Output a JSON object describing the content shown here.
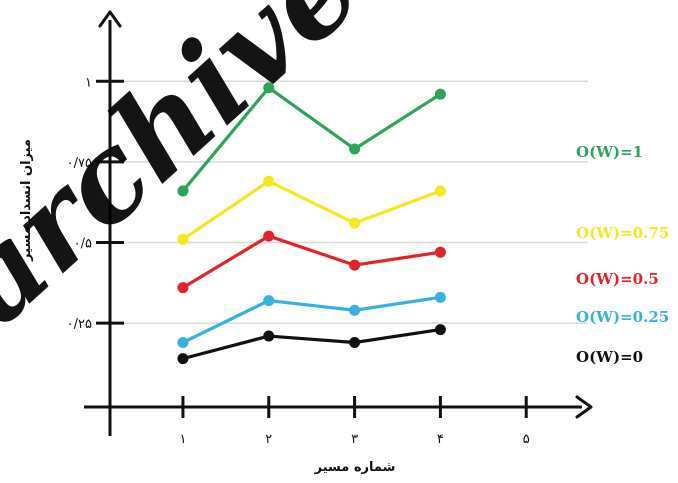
{
  "chart_data": {
    "type": "line",
    "xlabel": "شماره مسیر",
    "ylabel": "میزان انسداد مسیر",
    "x": [
      1,
      2,
      3,
      4
    ],
    "x_ticks": [
      "۱",
      "۲",
      "۳",
      "۴",
      "۵"
    ],
    "y_ticks": [
      "۰/۲۵",
      "۰/۵",
      "۰/۷۵",
      "۱"
    ],
    "xlim": [
      0.15,
      5.65
    ],
    "ylim": [
      -0.01,
      1.19
    ],
    "grid": true,
    "series": [
      {
        "name": "O(W)=1",
        "color": "#2aa655",
        "values": [
          0.66,
          0.98,
          0.79,
          0.96
        ]
      },
      {
        "name": "O(W)=0.75",
        "color": "#f7e71c",
        "values": [
          0.51,
          0.69,
          0.56,
          0.66
        ]
      },
      {
        "name": "O(W)=0.5",
        "color": "#e82127",
        "values": [
          0.36,
          0.52,
          0.43,
          0.47
        ]
      },
      {
        "name": "O(W)=0.25",
        "color": "#34b3e3",
        "values": [
          0.19,
          0.32,
          0.29,
          0.33
        ]
      },
      {
        "name": "O(W)=0",
        "color": "#111111",
        "values": [
          0.14,
          0.21,
          0.19,
          0.23
        ]
      }
    ]
  },
  "watermark": "archive"
}
